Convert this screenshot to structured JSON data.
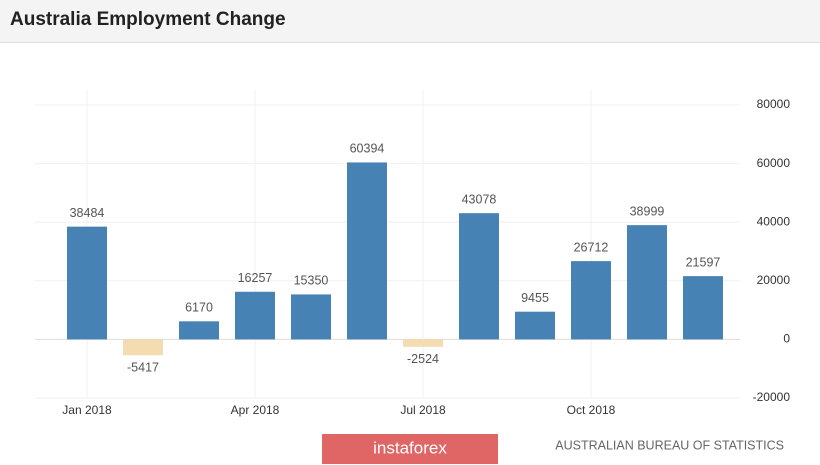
{
  "chart_data": {
    "type": "bar",
    "title": "Australia Employment Change",
    "categories": [
      "Jan 2018",
      null,
      null,
      "Apr 2018",
      null,
      null,
      "Jul 2018",
      null,
      null,
      "Oct 2018",
      null,
      null
    ],
    "values": [
      38484,
      -5417,
      6170,
      16257,
      15350,
      60394,
      -2524,
      43078,
      9455,
      26712,
      38999,
      21597
    ],
    "color": "#4682b4",
    "negative_color": "#f2dcb0",
    "ylim": [
      -20000,
      80000
    ],
    "yticks": [
      -20000,
      0,
      20000,
      40000,
      60000,
      80000
    ],
    "grid": true,
    "watermark": "instaforex",
    "source": "AUSTRALIAN BUREAU OF STATISTICS"
  }
}
